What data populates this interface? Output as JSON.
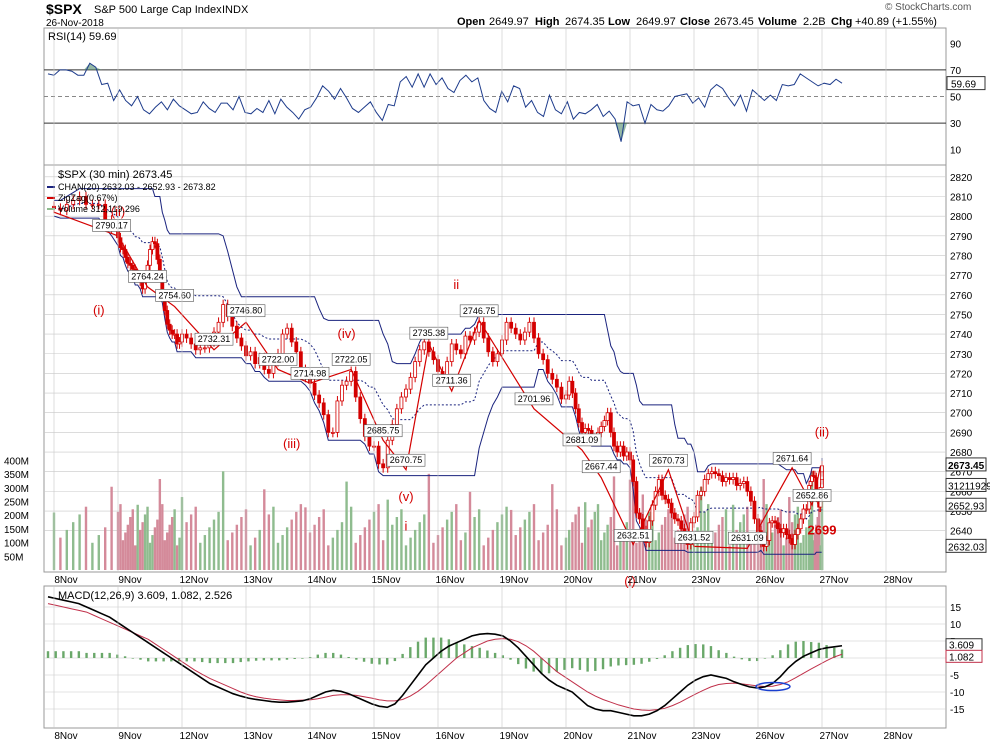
{
  "header": {
    "symbol": "$SPX",
    "name": "S&P 500 Large Cap Index",
    "exchange": "INDX",
    "date": "26-Nov-2018",
    "open_label": "Open",
    "open": "2649.97",
    "high_label": "High",
    "high": "2674.35",
    "low_label": "Low",
    "low": "2649.97",
    "close_label": "Close",
    "close": "2673.45",
    "volume_label": "Volume",
    "volume": "2.2B",
    "chg_label": "Chg",
    "chg": "+40.89 (+1.55%)",
    "watermark": "© StockCharts.com"
  },
  "colors": {
    "price": "#d40000",
    "channel": "#1a237e",
    "zigzag": "#d40000",
    "vol_up": "#8fbc8f",
    "vol_down": "#d48a9a",
    "macd": "#000000",
    "signal": "#c0304a",
    "hist": "#6aa86a",
    "rsi": "#1e3c8c",
    "rsi_fill": "#4f8a6a",
    "grid": "#c8c8c8"
  },
  "chart_data": [
    {
      "type": "line",
      "panel": "rsi",
      "legend": "RSI(14) 59.69",
      "ylim": [
        0,
        100
      ],
      "yticks": [
        10,
        30,
        50,
        70,
        90
      ],
      "levels": [
        30,
        50,
        70
      ],
      "value_label": "59.69",
      "values": [
        67,
        66,
        70,
        70,
        69,
        66,
        66,
        75,
        72,
        59,
        60,
        47,
        55,
        47,
        43,
        50,
        40,
        37,
        42,
        46,
        40,
        48,
        43,
        40,
        37,
        38,
        46,
        41,
        38,
        45,
        45,
        40,
        50,
        38,
        37,
        41,
        38,
        47,
        37,
        48,
        42,
        38,
        33,
        40,
        42,
        49,
        58,
        54,
        48,
        56,
        49,
        41,
        38,
        42,
        46,
        38,
        32,
        44,
        43,
        61,
        65,
        57,
        67,
        57,
        67,
        59,
        64,
        56,
        53,
        62,
        66,
        61,
        64,
        47,
        41,
        38,
        54,
        46,
        58,
        56,
        42,
        47,
        38,
        35,
        51,
        40,
        37,
        46,
        33,
        38,
        37,
        40,
        44,
        35,
        39,
        33,
        16,
        46,
        43,
        44,
        30,
        44,
        40,
        39,
        43,
        50,
        51,
        52,
        45,
        49,
        42,
        55,
        59,
        56,
        49,
        43,
        51,
        39,
        55,
        51,
        47,
        51,
        47,
        59,
        58,
        59,
        67,
        64,
        61,
        58,
        60,
        59,
        63,
        60
      ]
    },
    {
      "type": "candlestick",
      "panel": "price",
      "title": "$SPX (30 min) 2673.45",
      "legend": [
        {
          "name": "CHAN(20) 2632.03 - 2652.93 - 2673.82",
          "color": "#1a237e"
        },
        {
          "name": "ZigZag(0.67%)",
          "color": "#d40000"
        },
        {
          "name": "Volume 312,119,296",
          "color": "#8fbc8f"
        }
      ],
      "ylim": [
        2620,
        2825
      ],
      "yticks": [
        2640,
        2650,
        2660,
        2670,
        2680,
        2690,
        2700,
        2710,
        2720,
        2730,
        2740,
        2750,
        2760,
        2770,
        2780,
        2790,
        2800,
        2810,
        2820
      ],
      "x_dates": [
        "8Nov",
        "9Nov",
        "12Nov",
        "13Nov",
        "14Nov",
        "15Nov",
        "16Nov",
        "19Nov",
        "20Nov",
        "21Nov",
        "23Nov",
        "26Nov",
        "27Nov",
        "28Nov"
      ],
      "closes": [
        2804,
        2803,
        2806,
        2808,
        2810,
        2806,
        2806,
        2806,
        2798,
        2794,
        2789,
        2784,
        2783,
        2779,
        2776,
        2775,
        2773,
        2769,
        2769,
        2767,
        2763,
        2770,
        2775,
        2783,
        2787,
        2786,
        2778,
        2769,
        2760,
        2752,
        2745,
        2742,
        2740,
        2740,
        2735,
        2736,
        2740,
        2738,
        2735,
        2732,
        2733,
        2733,
        2736,
        2741,
        2746,
        2755,
        2749,
        2744,
        2738,
        2734,
        2729,
        2731,
        2725,
        2728,
        2722,
        2720,
        2726,
        2730,
        2740,
        2743,
        2736,
        2731,
        2722,
        2718,
        2715,
        2709,
        2705,
        2699,
        2690,
        2690,
        2706,
        2714,
        2716,
        2721,
        2708,
        2697,
        2688,
        2683,
        2683,
        2674,
        2672,
        2686,
        2694,
        2702,
        2708,
        2712,
        2718,
        2726,
        2732,
        2736,
        2731,
        2727,
        2721,
        2717,
        2726,
        2735,
        2732,
        2730,
        2739,
        2737,
        2741,
        2746,
        2738,
        2731,
        2726,
        2730,
        2737,
        2746,
        2743,
        2740,
        2737,
        2741,
        2746,
        2738,
        2730,
        2727,
        2720,
        2717,
        2713,
        2707,
        2709,
        2716,
        2710,
        2702,
        2695,
        2690,
        2692,
        2691,
        2687,
        2687,
        2690,
        2693,
        2696,
        2700,
        2690,
        2683,
        2680,
        2683,
        2678,
        2680,
        2676,
        2665,
        2649,
        2646,
        2640,
        2634,
        2645,
        2653,
        2660,
        2666,
        2658,
        2656,
        2654,
        2649,
        2646,
        2645,
        2641,
        2637,
        2633,
        2644,
        2647,
        2658,
        2660,
        2666,
        2669,
        2670,
        2669,
        2668,
        2665,
        2667,
        2666,
        2667,
        2663,
        2664,
        2665,
        2660,
        2655,
        2646,
        2640,
        2634,
        2632,
        2635,
        2644,
        2645,
        2644,
        2641,
        2639,
        2641,
        2638,
        2636,
        2633,
        2638,
        2641,
        2646,
        2651,
        2651,
        2663,
        2665,
        2668,
        2668,
        2667,
        2657,
        2656,
        2652,
        2662,
        2666,
        2670,
        2673
      ],
      "labels": [
        {
          "i": 9,
          "v": 2790.17,
          "text": "2790.17"
        },
        {
          "i": 22,
          "v": 2764.24,
          "text": "2764.24"
        },
        {
          "i": 33,
          "v": 2754.6,
          "text": "2754.60"
        },
        {
          "i": 43,
          "v": 2732.31,
          "text": "2732.31"
        },
        {
          "i": 50,
          "v": 2746.8,
          "text": "2746.80"
        },
        {
          "i": 57,
          "v": 2722.0,
          "text": "2722.00"
        },
        {
          "i": 64,
          "v": 2714.98,
          "text": "2714.98"
        },
        {
          "i": 73,
          "v": 2722.05,
          "text": "2722.05"
        },
        {
          "i": 80,
          "v": 2685.75,
          "text": "2685.75"
        },
        {
          "i": 85,
          "v": 2670.75,
          "text": "2670.75"
        },
        {
          "i": 90,
          "v": 2735.38,
          "text": "2735.38"
        },
        {
          "i": 95,
          "v": 2711.36,
          "text": "2711.36"
        },
        {
          "i": 101,
          "v": 2746.75,
          "text": "2746.75"
        },
        {
          "i": 113,
          "v": 2701.96,
          "text": "2701.96"
        },
        {
          "i": 125,
          "v": 2681.09,
          "text": "2681.09"
        },
        {
          "i": 131,
          "v": 2667.44,
          "text": "2667.44"
        },
        {
          "i": 141,
          "v": 2632.51,
          "text": "2632.51"
        },
        {
          "i": 152,
          "v": 2670.73,
          "text": "2670.73"
        },
        {
          "i": 160,
          "v": 2631.52,
          "text": "2631.52"
        },
        {
          "i": 175,
          "v": 2631.09,
          "text": "2631.09"
        },
        {
          "i": 190,
          "v": 2671.64,
          "text": "2671.64"
        },
        {
          "i": 198,
          "v": 2652.86,
          "text": "2652.86"
        }
      ],
      "wave_labels": [
        {
          "text": "(ii)",
          "i": 10,
          "v": 2800
        },
        {
          "text": "(i)",
          "i": 7,
          "v": 2750
        },
        {
          "text": "(iv)",
          "i": 72,
          "v": 2738
        },
        {
          "text": "(iii)",
          "i": 60,
          "v": 2682
        },
        {
          "text": "(v)",
          "i": 85,
          "v": 2655
        },
        {
          "text": "i",
          "i": 85,
          "v": 2640
        },
        {
          "text": "ii",
          "i": 96,
          "v": 2763
        },
        {
          "text": "(ii)",
          "i": 215,
          "v": 2688
        },
        {
          "text": "(i)",
          "i": 140,
          "v": 2612
        },
        {
          "text": "2699",
          "i": 213,
          "v": 2638
        }
      ],
      "right_labels": [
        {
          "v": 2673.45,
          "text": "2673.45",
          "style": "bold"
        },
        {
          "v": 2663,
          "text": "312119296",
          "style": "box"
        },
        {
          "v": 2652.93,
          "text": "2652.93",
          "style": "box"
        },
        {
          "v": 2632.03,
          "text": "2632.03",
          "style": "box"
        }
      ],
      "zigzag": [
        [
          0,
          2802
        ],
        [
          10,
          2790
        ],
        [
          22,
          2764
        ],
        [
          33,
          2754
        ],
        [
          43,
          2732
        ],
        [
          50,
          2746
        ],
        [
          57,
          2722
        ],
        [
          64,
          2715
        ],
        [
          73,
          2722
        ],
        [
          80,
          2686
        ],
        [
          85,
          2671
        ],
        [
          90,
          2735
        ],
        [
          95,
          2711
        ],
        [
          101,
          2747
        ],
        [
          113,
          2702
        ],
        [
          125,
          2681
        ],
        [
          131,
          2667
        ],
        [
          141,
          2633
        ],
        [
          152,
          2671
        ],
        [
          160,
          2632
        ],
        [
          175,
          2631
        ],
        [
          190,
          2672
        ],
        [
          198,
          2653
        ],
        [
          204,
          2673
        ]
      ],
      "volume_ylim": [
        0,
        420
      ],
      "volume_ticks": [
        50,
        100,
        150,
        200,
        250,
        300,
        350,
        400
      ],
      "volume_tick_labels": [
        "50M",
        "100M",
        "150M",
        "200M",
        "250M",
        "300M",
        "350M",
        "400M"
      ]
    },
    {
      "type": "line",
      "panel": "macd",
      "legend": "MACD(12,26,9) 3.609, 1.082, 2.526",
      "ylim": [
        -20,
        20
      ],
      "yticks": [
        -15,
        -10,
        -5,
        0,
        5,
        10,
        15
      ],
      "value_labels": [
        "3.609",
        "1.082"
      ],
      "macd": [
        18,
        17.5,
        17,
        16.5,
        16,
        15,
        14,
        13,
        12,
        10.5,
        9,
        7.5,
        6,
        4.5,
        3,
        1.5,
        0,
        -1.5,
        -3,
        -4.5,
        -6,
        -7.5,
        -8.5,
        -9.5,
        -10.5,
        -11.2,
        -11.8,
        -12.2,
        -12.5,
        -12.8,
        -13,
        -13,
        -12.8,
        -12.6,
        -12,
        -11,
        -10,
        -9.5,
        -9.8,
        -10.5,
        -11.5,
        -12.5,
        -13.5,
        -14.2,
        -14.5,
        -13.5,
        -11,
        -8,
        -5,
        -2,
        0,
        2,
        3.5,
        4.5,
        5.5,
        6.5,
        7,
        7.2,
        7,
        6.5,
        5,
        3,
        0.5,
        -2,
        -4.5,
        -6.5,
        -8,
        -9,
        -10,
        -12,
        -14,
        -15,
        -15.5,
        -15.5,
        -16,
        -16.5,
        -17,
        -17,
        -16.5,
        -15.5,
        -14,
        -12,
        -10,
        -8,
        -6.5,
        -5.5,
        -5,
        -5.5,
        -6,
        -7,
        -7.8,
        -8.5,
        -8.8,
        -8.5,
        -7.5,
        -5.5,
        -3,
        -1,
        0.5,
        1.5,
        2.5,
        3,
        3.3,
        3.6
      ],
      "signal": [
        16,
        15.5,
        15,
        14.5,
        14,
        13.5,
        12.5,
        11.5,
        10.5,
        9.5,
        8.5,
        7.5,
        6.5,
        5.5,
        4,
        2.5,
        1,
        -0.5,
        -2,
        -3.5,
        -4.8,
        -6,
        -7,
        -8,
        -9,
        -10,
        -10.8,
        -11.4,
        -11.8,
        -12.1,
        -12.3,
        -12.5,
        -12.5,
        -12.4,
        -12.3,
        -12,
        -11.5,
        -11,
        -10.8,
        -10.8,
        -11,
        -11.4,
        -11.8,
        -12.3,
        -12.6,
        -12.6,
        -12.2,
        -11.2,
        -9.8,
        -8,
        -6,
        -4,
        -2,
        0,
        1.5,
        3,
        4,
        5,
        5.5,
        5.7,
        5.5,
        4.8,
        3.6,
        2,
        0,
        -2,
        -4,
        -5.5,
        -7,
        -8.5,
        -10,
        -11.2,
        -12.2,
        -13,
        -13.8,
        -14.4,
        -15,
        -15.3,
        -15.4,
        -15.2,
        -14.8,
        -14,
        -13,
        -11.8,
        -10.6,
        -9.5,
        -8.5,
        -7.8,
        -7.5,
        -7.4,
        -7.6,
        -7.9,
        -8.2,
        -8.4,
        -8.3,
        -7.8,
        -7,
        -5.8,
        -4.5,
        -3.2,
        -2,
        -0.8,
        0.3,
        1.1
      ],
      "hist": [
        2,
        2,
        2,
        2,
        2,
        1.5,
        1.5,
        1.5,
        1.5,
        1,
        0.5,
        0,
        -0.5,
        -1,
        -1,
        -1,
        -1,
        -1,
        -1,
        -1,
        -1.2,
        -1.5,
        -1.5,
        -1.5,
        -1.5,
        -1.2,
        -1,
        -0.8,
        -0.7,
        -0.7,
        -0.7,
        -0.5,
        -0.3,
        -0.2,
        0.3,
        1,
        1.5,
        1.5,
        1,
        0.3,
        -0.5,
        -1.1,
        -1.7,
        -1.9,
        -1.9,
        -0.9,
        1.2,
        3.2,
        4.8,
        6,
        6,
        6,
        5.5,
        4.5,
        4,
        3.5,
        3,
        2.2,
        1.5,
        0.8,
        -0.5,
        -1.8,
        -3.1,
        -4,
        -4.5,
        -4.5,
        -4,
        -3.5,
        -3,
        -3.5,
        -4,
        -3.8,
        -3.3,
        -2.5,
        -2.2,
        -2.1,
        -2,
        -1.7,
        -1.1,
        -0.3,
        0.8,
        2,
        3,
        3.8,
        4.1,
        4,
        3.5,
        2.3,
        1.5,
        0.4,
        -0.4,
        -0.9,
        -0.9,
        -0.1,
        0.8,
        2.3,
        4,
        4.8,
        5,
        4.7,
        4.5,
        3.8,
        3,
        2.5
      ]
    }
  ]
}
